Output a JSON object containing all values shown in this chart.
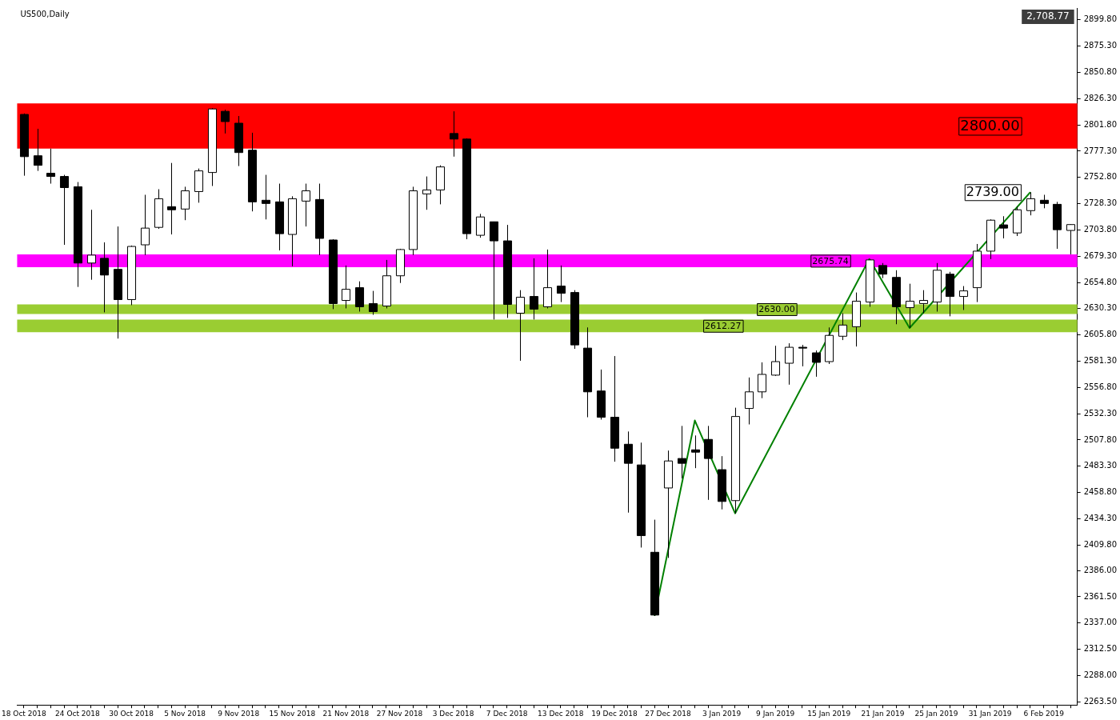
{
  "chart_data": {
    "type": "candlestick",
    "title": "US500,Daily",
    "categories": [
      "18 Oct 2018",
      null,
      null,
      null,
      "24 Oct 2018",
      null,
      null,
      null,
      "30 Oct 2018",
      null,
      null,
      null,
      "5 Nov 2018",
      null,
      null,
      null,
      "9 Nov 2018",
      null,
      null,
      null,
      "15 Nov 2018",
      null,
      null,
      null,
      "21 Nov 2018",
      null,
      null,
      null,
      "27 Nov 2018",
      null,
      null,
      null,
      "3 Dec 2018",
      null,
      null,
      null,
      "7 Dec 2018",
      null,
      null,
      null,
      "13 Dec 2018",
      null,
      null,
      null,
      "19 Dec 2018",
      null,
      null,
      null,
      "27 Dec 2018",
      null,
      null,
      null,
      "3 Jan 2019",
      null,
      null,
      null,
      "9 Jan 2019",
      null,
      null,
      null,
      "15 Jan 2019",
      null,
      null,
      null,
      "21 Jan 2019",
      null,
      null,
      null,
      "25 Jan 2019",
      null,
      null,
      null,
      "31 Jan 2019",
      null,
      null,
      null,
      "6 Feb 2019",
      null,
      null
    ],
    "ohlc": [
      [
        2811.6,
        2812.5,
        2754.4,
        2772.2
      ],
      [
        2773.0,
        2798.2,
        2758.9,
        2764.1
      ],
      [
        2756.7,
        2779.7,
        2747.0,
        2753.7
      ],
      [
        2753.7,
        2755.2,
        2689.9,
        2743.3
      ],
      [
        2744.1,
        2748.5,
        2650.6,
        2672.9
      ],
      [
        2672.9,
        2722.6,
        2657.3,
        2680.3
      ],
      [
        2677.3,
        2692.2,
        2626.9,
        2661.7
      ],
      [
        2667.0,
        2707.0,
        2602.4,
        2638.8
      ],
      [
        2638.8,
        2689.2,
        2633.6,
        2688.4
      ],
      [
        2689.9,
        2736.6,
        2680.3,
        2705.5
      ],
      [
        2706.2,
        2741.8,
        2704.8,
        2732.9
      ],
      [
        2725.5,
        2766.3,
        2699.6,
        2722.6
      ],
      [
        2723.3,
        2744.1,
        2712.9,
        2740.3
      ],
      [
        2739.6,
        2761.1,
        2729.2,
        2758.9
      ],
      [
        2757.4,
        2817.5,
        2744.8,
        2816.7
      ],
      [
        2814.5,
        2816.0,
        2793.8,
        2804.9
      ],
      [
        2803.4,
        2810.1,
        2763.4,
        2776.0
      ],
      [
        2778.2,
        2794.5,
        2721.1,
        2730.0
      ],
      [
        2731.5,
        2755.2,
        2713.6,
        2728.5
      ],
      [
        2730.0,
        2747.0,
        2684.7,
        2700.3
      ],
      [
        2699.6,
        2735.2,
        2669.9,
        2732.9
      ],
      [
        2730.7,
        2747.0,
        2707.0,
        2740.3
      ],
      [
        2732.2,
        2747.0,
        2680.3,
        2695.9
      ],
      [
        2694.4,
        2695.1,
        2629.9,
        2635.1
      ],
      [
        2638.0,
        2670.6,
        2630.6,
        2648.4
      ],
      [
        2649.9,
        2655.8,
        2627.6,
        2632.1
      ],
      [
        2635.1,
        2646.9,
        2624.6,
        2627.6
      ],
      [
        2632.8,
        2675.8,
        2630.6,
        2661.0
      ],
      [
        2661.0,
        2686.2,
        2654.3,
        2685.5
      ],
      [
        2685.5,
        2744.1,
        2680.3,
        2740.3
      ],
      [
        2737.4,
        2753.7,
        2722.6,
        2741.1
      ],
      [
        2741.1,
        2764.1,
        2727.7,
        2762.6
      ],
      [
        2793.8,
        2814.5,
        2772.2,
        2788.6
      ],
      [
        2788.6,
        2789.3,
        2695.1,
        2700.3
      ],
      [
        2698.8,
        2718.8,
        2696.6,
        2715.9
      ],
      [
        2711.4,
        2711.4,
        2620.2,
        2693.6
      ],
      [
        2693.6,
        2708.5,
        2621.7,
        2634.3
      ],
      [
        2626.1,
        2647.6,
        2581.7,
        2641.0
      ],
      [
        2641.7,
        2677.3,
        2620.2,
        2629.9
      ],
      [
        2632.1,
        2685.5,
        2630.6,
        2649.9
      ],
      [
        2651.4,
        2670.6,
        2636.5,
        2644.7
      ],
      [
        2645.4,
        2647.6,
        2592.8,
        2596.5
      ],
      [
        2593.5,
        2612.8,
        2529.0,
        2552.7
      ],
      [
        2553.5,
        2573.5,
        2526.8,
        2529.0
      ],
      [
        2529.0,
        2586.1,
        2487.5,
        2500.1
      ],
      [
        2503.8,
        2515.7,
        2440.0,
        2486.0
      ],
      [
        2484.5,
        2505.3,
        2407.4,
        2418.5
      ],
      [
        2403.0,
        2433.4,
        2343.6,
        2344.4
      ],
      [
        2463.0,
        2497.9,
        2397.7,
        2488.2
      ],
      [
        2490.5,
        2520.9,
        2471.9,
        2486.0
      ],
      [
        2498.6,
        2512.0,
        2481.5,
        2496.4
      ],
      [
        2508.3,
        2520.9,
        2451.9,
        2490.5
      ],
      [
        2480.1,
        2492.7,
        2443.0,
        2450.4
      ],
      [
        2451.2,
        2537.9,
        2439.3,
        2529.7
      ],
      [
        2537.2,
        2566.1,
        2522.3,
        2552.7
      ],
      [
        2552.7,
        2580.2,
        2546.8,
        2569.0
      ],
      [
        2568.3,
        2595.7,
        2567.6,
        2580.9
      ],
      [
        2579.4,
        2598.0,
        2559.4,
        2594.3
      ],
      [
        2594.3,
        2596.5,
        2576.5,
        2593.5
      ],
      [
        2589.1,
        2591.3,
        2566.8,
        2580.2
      ],
      [
        2580.9,
        2612.8,
        2578.7,
        2605.4
      ],
      [
        2604.6,
        2626.1,
        2601.0,
        2615.0
      ],
      [
        2613.5,
        2645.4,
        2595.0,
        2637.3
      ],
      [
        2636.5,
        2676.6,
        2632.1,
        2675.8
      ],
      [
        2670.6,
        2672.9,
        2658.8,
        2662.5
      ],
      [
        2659.5,
        2666.2,
        2615.8,
        2632.1
      ],
      [
        2631.3,
        2653.6,
        2612.3,
        2637.3
      ],
      [
        2635.1,
        2647.6,
        2626.1,
        2638.0
      ],
      [
        2636.5,
        2672.9,
        2627.6,
        2666.2
      ],
      [
        2662.5,
        2664.7,
        2623.2,
        2641.7
      ],
      [
        2641.7,
        2651.4,
        2629.1,
        2646.9
      ],
      [
        2649.9,
        2690.7,
        2636.5,
        2684.0
      ],
      [
        2684.0,
        2713.6,
        2676.6,
        2712.9
      ],
      [
        2708.5,
        2716.6,
        2695.9,
        2705.5
      ],
      [
        2701.0,
        2725.5,
        2698.1,
        2722.6
      ],
      [
        2721.8,
        2739.0,
        2717.4,
        2732.9
      ],
      [
        2731.5,
        2736.6,
        2724.0,
        2728.5
      ],
      [
        2727.7,
        2730.0,
        2686.2,
        2704.0
      ],
      [
        2703.3,
        2709.2,
        2681.0,
        2708.8
      ]
    ],
    "series": [
      {
        "type": "line",
        "color": "#008000",
        "values": [
          null,
          null,
          null,
          null,
          null,
          null,
          null,
          null,
          null,
          null,
          null,
          null,
          null,
          null,
          null,
          null,
          null,
          null,
          null,
          null,
          null,
          null,
          null,
          null,
          null,
          null,
          null,
          null,
          null,
          null,
          null,
          null,
          null,
          null,
          null,
          null,
          null,
          null,
          null,
          null,
          null,
          null,
          null,
          null,
          null,
          null,
          null,
          2343.6,
          null,
          null,
          2526.0,
          null,
          null,
          2439.3,
          null,
          null,
          null,
          null,
          null,
          null,
          null,
          null,
          null,
          2676.6,
          null,
          null,
          2612.3,
          null,
          null,
          null,
          null,
          null,
          null,
          null,
          null,
          2739.0,
          null,
          null,
          null
        ]
      }
    ],
    "marker": "none",
    "ylim": [
      2260.5,
      2910.9
    ],
    "yticks": [
      {
        "value": 2899.8,
        "label": "2899.80"
      },
      {
        "value": 2875.3,
        "label": "2875.30"
      },
      {
        "value": 2850.8,
        "label": "2850.80"
      },
      {
        "value": 2826.3,
        "label": "2826.30"
      },
      {
        "value": 2801.8,
        "label": "2801.80"
      },
      {
        "value": 2777.3,
        "label": "2777.30"
      },
      {
        "value": 2752.8,
        "label": "2752.80"
      },
      {
        "value": 2728.3,
        "label": "2728.30"
      },
      {
        "value": 2703.8,
        "label": "2703.80"
      },
      {
        "value": 2679.3,
        "label": "2679.30"
      },
      {
        "value": 2654.8,
        "label": "2654.80"
      },
      {
        "value": 2630.3,
        "label": "2630.30"
      },
      {
        "value": 2605.8,
        "label": "2605.80"
      },
      {
        "value": 2581.3,
        "label": "2581.30"
      },
      {
        "value": 2556.8,
        "label": "2556.80"
      },
      {
        "value": 2532.3,
        "label": "2532.30"
      },
      {
        "value": 2507.8,
        "label": "2507.80"
      },
      {
        "value": 2483.3,
        "label": "2483.30"
      },
      {
        "value": 2458.8,
        "label": "2458.80"
      },
      {
        "value": 2434.3,
        "label": "2434.30"
      },
      {
        "value": 2409.8,
        "label": "2409.80"
      },
      {
        "value": 2386.0,
        "label": "2386.00"
      },
      {
        "value": 2361.5,
        "label": "2361.50"
      },
      {
        "value": 2337.0,
        "label": "2337.00"
      },
      {
        "value": 2312.5,
        "label": "2312.50"
      },
      {
        "value": 2288.0,
        "label": "2288.00"
      },
      {
        "value": 2263.5,
        "label": "2263.50"
      }
    ],
    "bands": [
      {
        "axis": "y",
        "from": 2779.7,
        "to": 2821.9,
        "label": "2800.00",
        "color": "#ff0000"
      },
      {
        "axis": "y",
        "from": 2669.1,
        "to": 2681.0,
        "label": "2675.74",
        "color": "#ff00ff"
      },
      {
        "axis": "y",
        "from": 2625.4,
        "to": 2634.3,
        "label": "2630.00",
        "color": "#9acd32"
      },
      {
        "axis": "y",
        "from": 2608.4,
        "to": 2620.2,
        "label": "2612.27",
        "color": "#9acd32"
      }
    ],
    "annotations": [
      "2739.00",
      "2,708.77"
    ],
    "grid": false,
    "legend": false
  }
}
